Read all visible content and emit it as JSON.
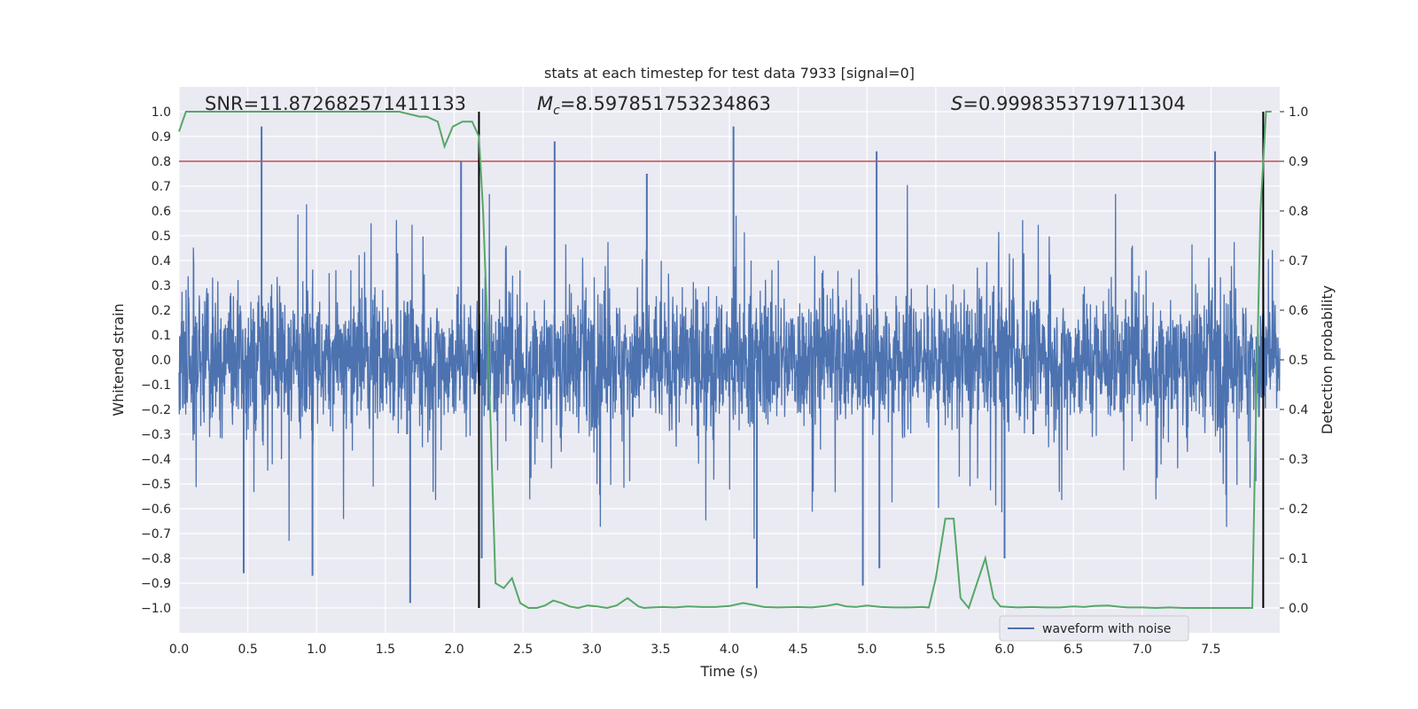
{
  "chart_data": {
    "type": "line",
    "title": "stats at each timestep for test data 7933 [signal=0]",
    "xlabel": "Time (s)",
    "ylabel_left": "Whitened strain",
    "ylabel_right": "Detection probability",
    "xlim": [
      0,
      8.0
    ],
    "ylim_left": [
      -1.1,
      1.1
    ],
    "ylim_right": [
      -0.05,
      1.05
    ],
    "x_ticks": [
      "0.0",
      "0.5",
      "1.0",
      "1.5",
      "2.0",
      "2.5",
      "3.0",
      "3.5",
      "4.0",
      "4.5",
      "5.0",
      "5.5",
      "6.0",
      "6.5",
      "7.0",
      "7.5"
    ],
    "y_left_ticks": [
      "1.0",
      "0.9",
      "0.8",
      "0.7",
      "0.6",
      "0.5",
      "0.4",
      "0.3",
      "0.2",
      "0.1",
      "0.0",
      "-0.1",
      "-0.2",
      "-0.3",
      "-0.4",
      "-0.5",
      "-0.6",
      "-0.7",
      "-0.8",
      "-0.9",
      "-1.0"
    ],
    "y_right_ticks": [
      "1.0",
      "0.9",
      "0.8",
      "0.7",
      "0.6",
      "0.5",
      "0.4",
      "0.3",
      "0.2",
      "0.1",
      "0.0"
    ],
    "grid": true,
    "legend": {
      "location": "lower-right",
      "entries": [
        "waveform with noise"
      ]
    },
    "annotations": {
      "snr": "SNR=11.872682571411133",
      "mc_symbol": "M",
      "mc_sub": "c",
      "mc_value": "=8.597851753234863",
      "s_symbol": "S",
      "s_value": "=0.9998353719711304"
    },
    "threshold_line": {
      "axis": "right",
      "value": 0.9,
      "color": "#c44e52"
    },
    "vertical_lines": [
      2.18,
      7.88
    ],
    "series": [
      {
        "name": "waveform with noise",
        "axis": "left",
        "color": "#4c72b0",
        "style": "dense noise, typical amplitude ±0.4, sampled over 0–8 s",
        "spikes": [
          {
            "x": 0.6,
            "y": 0.94
          },
          {
            "x": 0.47,
            "y": -0.86
          },
          {
            "x": 0.97,
            "y": -0.87
          },
          {
            "x": 1.68,
            "y": -0.98
          },
          {
            "x": 2.05,
            "y": 0.8
          },
          {
            "x": 2.73,
            "y": 0.88
          },
          {
            "x": 4.03,
            "y": 0.94
          },
          {
            "x": 4.2,
            "y": -0.92
          },
          {
            "x": 4.97,
            "y": -0.91
          },
          {
            "x": 5.07,
            "y": 0.84
          },
          {
            "x": 5.09,
            "y": -0.84
          },
          {
            "x": 7.53,
            "y": 0.84
          },
          {
            "x": 2.2,
            "y": -0.8
          },
          {
            "x": 6.0,
            "y": -0.8
          },
          {
            "x": 3.4,
            "y": 0.75
          }
        ]
      },
      {
        "name": "detection probability",
        "axis": "right",
        "color": "#55a868",
        "x": [
          0.0,
          0.05,
          0.1,
          0.2,
          0.4,
          0.6,
          0.8,
          1.0,
          1.2,
          1.4,
          1.6,
          1.75,
          1.8,
          1.88,
          1.93,
          1.99,
          2.06,
          2.13,
          2.18,
          2.21,
          2.25,
          2.3,
          2.36,
          2.42,
          2.48,
          2.54,
          2.6,
          2.66,
          2.72,
          2.78,
          2.84,
          2.9,
          2.97,
          3.04,
          3.11,
          3.18,
          3.26,
          3.34,
          3.38,
          3.44,
          3.52,
          3.6,
          3.7,
          3.8,
          3.9,
          4.0,
          4.1,
          4.18,
          4.25,
          4.35,
          4.5,
          4.6,
          4.7,
          4.78,
          4.85,
          4.92,
          5.0,
          5.1,
          5.2,
          5.3,
          5.4,
          5.45,
          5.5,
          5.57,
          5.63,
          5.68,
          5.74,
          5.8,
          5.86,
          5.92,
          5.97,
          6.03,
          6.1,
          6.2,
          6.3,
          6.4,
          6.5,
          6.58,
          6.65,
          6.75,
          6.85,
          6.9,
          7.0,
          7.1,
          7.2,
          7.3,
          7.4,
          7.5,
          7.6,
          7.7,
          7.8,
          7.82,
          7.86,
          7.9,
          7.94
        ],
        "y": [
          0.96,
          1.0,
          1.0,
          1.0,
          1.0,
          1.0,
          1.0,
          1.0,
          1.0,
          1.0,
          1.0,
          0.99,
          0.99,
          0.98,
          0.93,
          0.97,
          0.98,
          0.98,
          0.95,
          0.8,
          0.5,
          0.05,
          0.04,
          0.06,
          0.01,
          0.0,
          0.0,
          0.005,
          0.015,
          0.01,
          0.003,
          0.0,
          0.005,
          0.003,
          0.0,
          0.005,
          0.02,
          0.003,
          0.0,
          0.001,
          0.002,
          0.001,
          0.003,
          0.002,
          0.002,
          0.004,
          0.01,
          0.006,
          0.002,
          0.001,
          0.002,
          0.001,
          0.004,
          0.008,
          0.003,
          0.002,
          0.005,
          0.002,
          0.001,
          0.001,
          0.002,
          0.001,
          0.06,
          0.18,
          0.18,
          0.02,
          0.0,
          0.05,
          0.1,
          0.02,
          0.003,
          0.002,
          0.001,
          0.002,
          0.001,
          0.001,
          0.003,
          0.002,
          0.004,
          0.005,
          0.002,
          0.001,
          0.001,
          0.0,
          0.001,
          0.0,
          0.0,
          0.0,
          0.0,
          0.0,
          0.0,
          0.3,
          0.8,
          1.0,
          1.0
        ]
      }
    ]
  }
}
